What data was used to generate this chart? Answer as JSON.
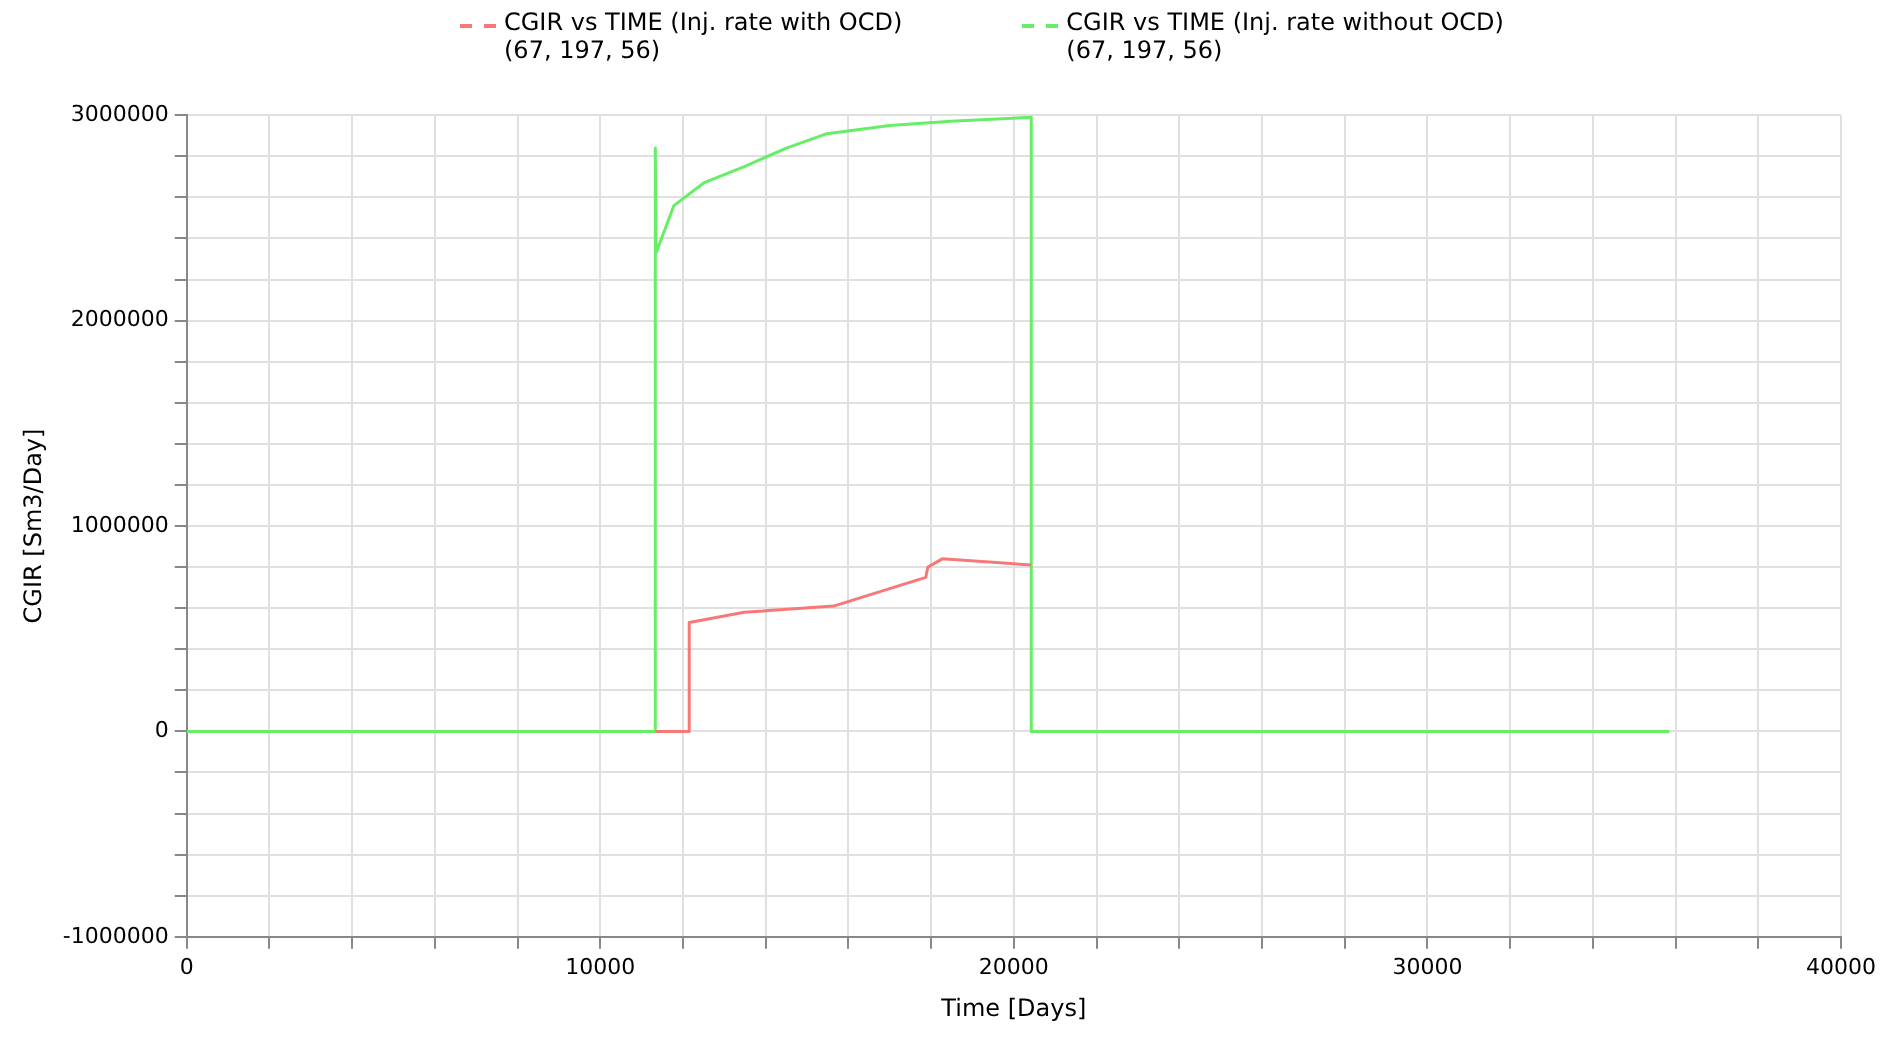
{
  "chart_data": {
    "type": "line",
    "xlabel": "Time [Days]",
    "ylabel": "CGIR [Sm3/Day]",
    "xlim": [
      0,
      40000
    ],
    "ylim": [
      -1000000,
      3000000
    ],
    "xticks": [
      0,
      {
        "value": 2000,
        "label": null
      },
      {
        "value": 4000,
        "label": null
      },
      {
        "value": 6000,
        "label": null
      },
      {
        "value": 8000,
        "label": null
      },
      10000,
      {
        "value": 12000,
        "label": null
      },
      {
        "value": 14000,
        "label": null
      },
      {
        "value": 16000,
        "label": null
      },
      {
        "value": 18000,
        "label": null
      },
      20000,
      {
        "value": 22000,
        "label": null
      },
      {
        "value": 24000,
        "label": null
      },
      {
        "value": 26000,
        "label": null
      },
      {
        "value": 28000,
        "label": null
      },
      30000,
      {
        "value": 32000,
        "label": null
      },
      {
        "value": 34000,
        "label": null
      },
      {
        "value": 36000,
        "label": null
      },
      {
        "value": 38000,
        "label": null
      },
      40000
    ],
    "yticks": [
      -1000000,
      {
        "value": -800000,
        "label": null
      },
      {
        "value": -600000,
        "label": null
      },
      {
        "value": -400000,
        "label": null
      },
      {
        "value": -200000,
        "label": null
      },
      0,
      {
        "value": 200000,
        "label": null
      },
      {
        "value": 400000,
        "label": null
      },
      {
        "value": 600000,
        "label": null
      },
      {
        "value": 800000,
        "label": null
      },
      1000000,
      {
        "value": 1200000,
        "label": null
      },
      {
        "value": 1400000,
        "label": null
      },
      {
        "value": 1600000,
        "label": null
      },
      {
        "value": 1800000,
        "label": null
      },
      2000000,
      {
        "value": 2200000,
        "label": null
      },
      {
        "value": 2400000,
        "label": null
      },
      {
        "value": 2600000,
        "label": null
      },
      {
        "value": 2800000,
        "label": null
      },
      3000000
    ],
    "grid": true,
    "legend": "top",
    "line_style": "solid",
    "marker": "none",
    "series": [
      {
        "name": "CGIR vs TIME (Inj. rate with OCD)\n(67, 197, 56)",
        "color": "#f87878",
        "x": [
          11330,
          12150,
          12150,
          13480,
          15640,
          17870,
          17920,
          18270,
          20420
        ],
        "values": [
          0,
          0,
          530000,
          580000,
          610000,
          750000,
          800000,
          840000,
          810000
        ]
      },
      {
        "name": "CGIR vs TIME (Inj. rate without OCD)\n(67, 197, 56)",
        "color": "#66ee66",
        "x": [
          0,
          11330,
          11330,
          11350,
          11780,
          12500,
          13480,
          14500,
          15480,
          17000,
          18470,
          20420,
          20420,
          35850
        ],
        "values": [
          0,
          0,
          2840000,
          2330000,
          2560000,
          2670000,
          2750000,
          2840000,
          2910000,
          2950000,
          2970000,
          2990000,
          0,
          0
        ]
      }
    ]
  }
}
